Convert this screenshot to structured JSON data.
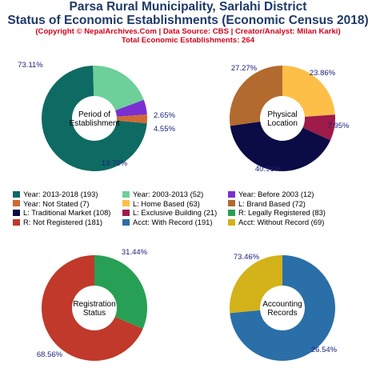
{
  "header": {
    "title_line1": "Parsa Rural Municipality, Sarlahi District",
    "title_line2": "Status of Economic Establishments (Economic Census 2018)",
    "copyright": "(Copyright © NepalArchives.Com | Data Source: CBS | Creator/Analyst: Milan Karki)",
    "total": "Total Economic Establishments: 264"
  },
  "chart_data": [
    {
      "type": "pie",
      "center_label": [
        "Period of",
        "Establishment"
      ],
      "slices": [
        {
          "name": "Year: 2013-2018",
          "value": 193,
          "pct_label": "73.11%",
          "color": "#0e6b63"
        },
        {
          "name": "Year: 2003-2013",
          "value": 52,
          "pct_label": "19.70%",
          "color": "#6dcf9a"
        },
        {
          "name": "Year: Before 2003",
          "value": 12,
          "pct_label": "4.55%",
          "color": "#7b2fd0"
        },
        {
          "name": "Year: Not Stated",
          "value": 7,
          "pct_label": "2.65%",
          "color": "#cf6a34"
        }
      ]
    },
    {
      "type": "pie",
      "center_label": [
        "Physical",
        "Location"
      ],
      "slices": [
        {
          "name": "L: Home Based",
          "value": 63,
          "pct_label": "23.86%",
          "color": "#fdbf47"
        },
        {
          "name": "L: Exclusive Building",
          "value": 21,
          "pct_label": "7.95%",
          "color": "#9e1b4a"
        },
        {
          "name": "L: Traditional Market",
          "value": 108,
          "pct_label": "40.91%",
          "color": "#0b0b45"
        },
        {
          "name": "L: Brand Based",
          "value": 72,
          "pct_label": "27.27%",
          "color": "#b36a2e"
        }
      ]
    },
    {
      "type": "pie",
      "center_label": [
        "Registration",
        "Status"
      ],
      "slices": [
        {
          "name": "R: Legally Registered",
          "value": 83,
          "pct_label": "31.44%",
          "color": "#27a055"
        },
        {
          "name": "R: Not Registered",
          "value": 181,
          "pct_label": "68.56%",
          "color": "#c0392b"
        }
      ]
    },
    {
      "type": "pie",
      "center_label": [
        "Accounting",
        "Records"
      ],
      "slices": [
        {
          "name": "Acct: With Record",
          "value": 191,
          "pct_label": "73.46%",
          "color": "#2a6fa8"
        },
        {
          "name": "Acct: Without Record",
          "value": 69,
          "pct_label": "26.54%",
          "color": "#d4b21a"
        }
      ]
    }
  ],
  "legend": [
    [
      {
        "label": "Year: 2013-2018 (193)",
        "color": "#0e6b63"
      },
      {
        "label": "Year: 2003-2013 (52)",
        "color": "#6dcf9a"
      },
      {
        "label": "Year: Before 2003 (12)",
        "color": "#7b2fd0"
      }
    ],
    [
      {
        "label": "Year: Not Stated (7)",
        "color": "#cf6a34"
      },
      {
        "label": "L: Home Based (63)",
        "color": "#fdbf47"
      },
      {
        "label": "L: Brand Based (72)",
        "color": "#b36a2e"
      }
    ],
    [
      {
        "label": "L: Traditional Market (108)",
        "color": "#0b0b45"
      },
      {
        "label": "L: Exclusive Building (21)",
        "color": "#9e1b4a"
      },
      {
        "label": "R: Legally Registered (83)",
        "color": "#27a055"
      }
    ],
    [
      {
        "label": "R: Not Registered (181)",
        "color": "#c0392b"
      },
      {
        "label": "Acct: With Record (191)",
        "color": "#2a6fa8"
      },
      {
        "label": "Acct: Without Record (69)",
        "color": "#d4b21a"
      }
    ]
  ]
}
